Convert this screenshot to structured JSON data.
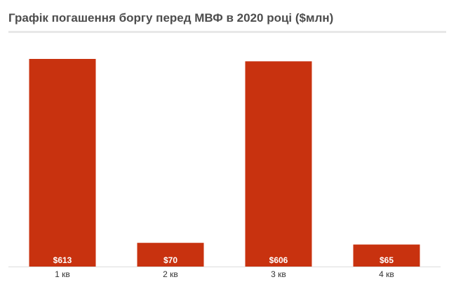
{
  "chart_data": {
    "type": "bar",
    "title": "Графік погашення боргу перед МВФ в 2020 році ($млн)",
    "xlabel": "",
    "ylabel": "",
    "categories": [
      "1 кв",
      "2 кв",
      "3 кв",
      "4 кв"
    ],
    "values": [
      613,
      70,
      606,
      65
    ],
    "value_labels": [
      "$613",
      "$70",
      "$606",
      "$65"
    ],
    "ylim": [
      0,
      613
    ],
    "grid": false,
    "legend": "none",
    "bar_color": "#c8320f",
    "baseline_color": "#dddddd"
  }
}
